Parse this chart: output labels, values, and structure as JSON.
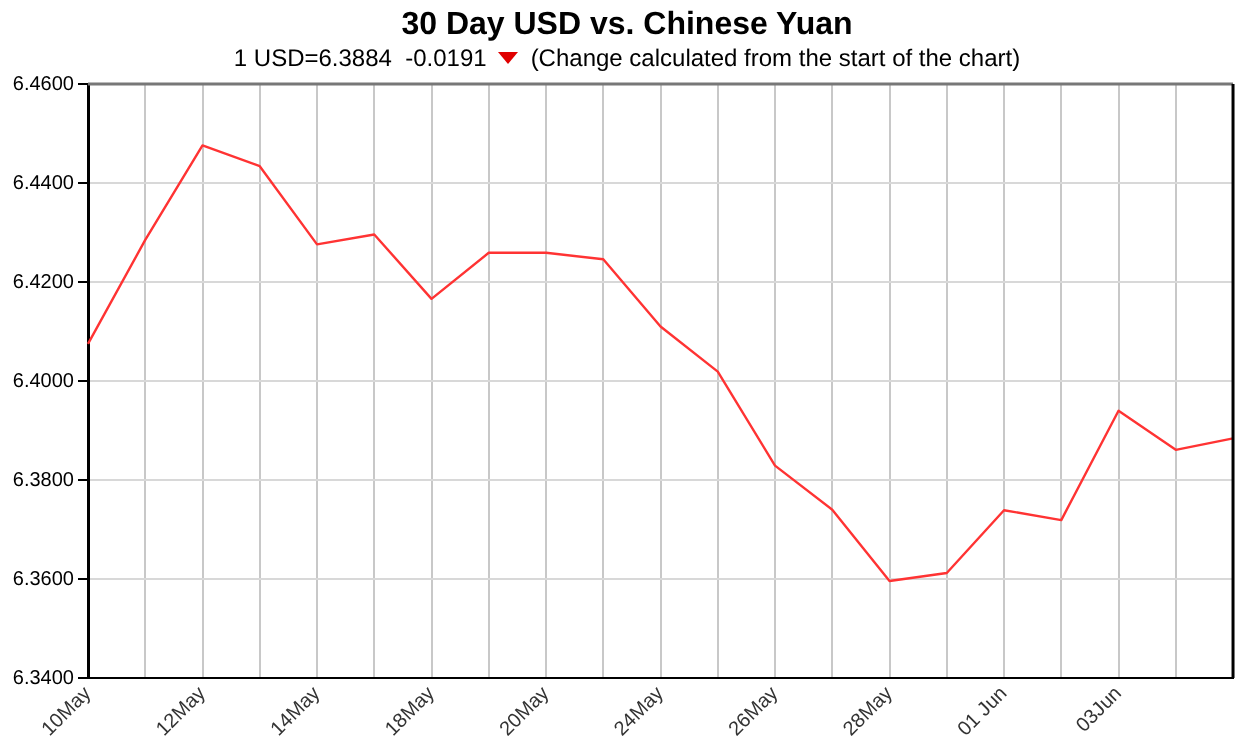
{
  "chart_data": {
    "type": "line",
    "title": "30 Day USD vs. Chinese Yuan",
    "subtitle": "1 USD=6.3884  -0.0191",
    "annotations": [
      "(Change calculated from the start of the chart)"
    ],
    "categories": [
      "10May",
      null,
      "12May",
      null,
      "14May",
      null,
      "18May",
      null,
      "20May",
      null,
      "24May",
      null,
      "26May",
      null,
      "28May",
      null,
      "01 Jun",
      null,
      "03Jun",
      null,
      null
    ],
    "series": [
      {
        "color": "#ff3333",
        "values": [
          6.4075,
          6.4285,
          6.4476,
          6.4434,
          6.4276,
          6.4296,
          6.4166,
          6.4259,
          6.4259,
          6.4246,
          6.411,
          6.4019,
          6.3829,
          6.374,
          6.3596,
          6.3612,
          6.3739,
          6.3719,
          6.394,
          6.3861,
          6.3884
        ]
      }
    ],
    "ylim": [
      6.34,
      6.46
    ],
    "yticks": [
      {
        "value": 6.34,
        "label": "6.3400"
      },
      {
        "value": 6.36,
        "label": "6.3600"
      },
      {
        "value": 6.38,
        "label": "6.3800"
      },
      {
        "value": 6.4,
        "label": "6.4000"
      },
      {
        "value": 6.42,
        "label": "6.4200"
      },
      {
        "value": 6.44,
        "label": "6.4400"
      },
      {
        "value": 6.46,
        "label": "6.4600"
      }
    ],
    "grid": true,
    "legend": false,
    "marker": "none",
    "line_style": "solid"
  }
}
